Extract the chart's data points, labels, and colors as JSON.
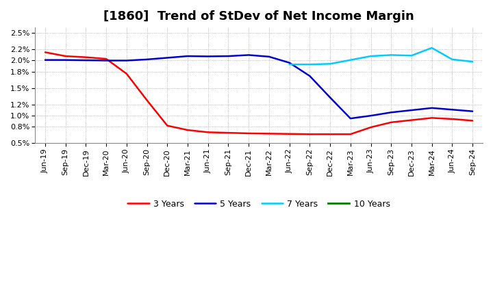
{
  "title": "[1860]  Trend of StDev of Net Income Margin",
  "background_color": "#ffffff",
  "grid_color": "#aaaaaa",
  "series": {
    "3 Years": {
      "color": "#ff0000",
      "dates": [
        "Jun-19",
        "Sep-19",
        "Dec-19",
        "Mar-20",
        "Jun-20",
        "Sep-20",
        "Dec-20",
        "Mar-21",
        "Jun-21",
        "Sep-21",
        "Dec-21",
        "Mar-22",
        "Jun-22",
        "Sep-22",
        "Dec-22",
        "Mar-23",
        "Jun-23",
        "Sep-23",
        "Dec-23",
        "Mar-24",
        "Jun-24",
        "Sep-24"
      ],
      "values": [
        0.0215,
        0.0208,
        0.0206,
        0.0203,
        0.0176,
        0.0128,
        0.0082,
        0.0074,
        0.007,
        0.0069,
        0.0068,
        0.00675,
        0.0067,
        0.00665,
        0.00665,
        0.00665,
        0.0079,
        0.0088,
        0.0092,
        0.0096,
        0.0094,
        0.0091
      ]
    },
    "5 Years": {
      "color": "#0000cc",
      "dates": [
        "Jun-19",
        "Sep-19",
        "Dec-19",
        "Mar-20",
        "Jun-20",
        "Sep-20",
        "Dec-20",
        "Mar-21",
        "Jun-21",
        "Sep-21",
        "Dec-21",
        "Mar-22",
        "Jun-22",
        "Sep-22",
        "Dec-22",
        "Mar-23",
        "Jun-23",
        "Sep-23",
        "Dec-23",
        "Mar-24",
        "Jun-24",
        "Sep-24"
      ],
      "values": [
        0.0201,
        0.0201,
        0.02005,
        0.02,
        0.02,
        0.0202,
        0.0205,
        0.0208,
        0.02075,
        0.0208,
        0.021,
        0.0207,
        0.0196,
        0.0172,
        0.0133,
        0.0095,
        0.01,
        0.0106,
        0.011,
        0.0114,
        0.0111,
        0.0108
      ]
    },
    "7 Years": {
      "color": "#00ccff",
      "dates": [
        "Jun-22",
        "Sep-22",
        "Dec-22",
        "Mar-23",
        "Jun-23",
        "Sep-23",
        "Dec-23",
        "Mar-24",
        "Jun-24",
        "Sep-24"
      ],
      "values": [
        0.0193,
        0.0193,
        0.0194,
        0.0201,
        0.0208,
        0.021,
        0.0209,
        0.0223,
        0.0202,
        0.0198
      ]
    },
    "10 Years": {
      "color": "#008000",
      "dates": [],
      "values": []
    }
  },
  "xtick_labels": [
    "Jun-19",
    "Sep-19",
    "Dec-19",
    "Mar-20",
    "Jun-20",
    "Sep-20",
    "Dec-20",
    "Mar-21",
    "Jun-21",
    "Sep-21",
    "Dec-21",
    "Mar-22",
    "Jun-22",
    "Sep-22",
    "Dec-22",
    "Mar-23",
    "Jun-23",
    "Sep-23",
    "Dec-23",
    "Mar-24",
    "Jun-24",
    "Sep-24"
  ],
  "ylim": [
    0.005,
    0.026
  ],
  "yticks": [
    0.005,
    0.008,
    0.01,
    0.012,
    0.015,
    0.018,
    0.02,
    0.022,
    0.025
  ],
  "ytick_labels": [
    "0.5%",
    "0.8%",
    "1.0%",
    "1.2%",
    "1.5%",
    "1.8%",
    "2.0%",
    "2.2%",
    "2.5%"
  ],
  "title_fontsize": 13,
  "legend_fontsize": 9,
  "tick_fontsize": 8
}
